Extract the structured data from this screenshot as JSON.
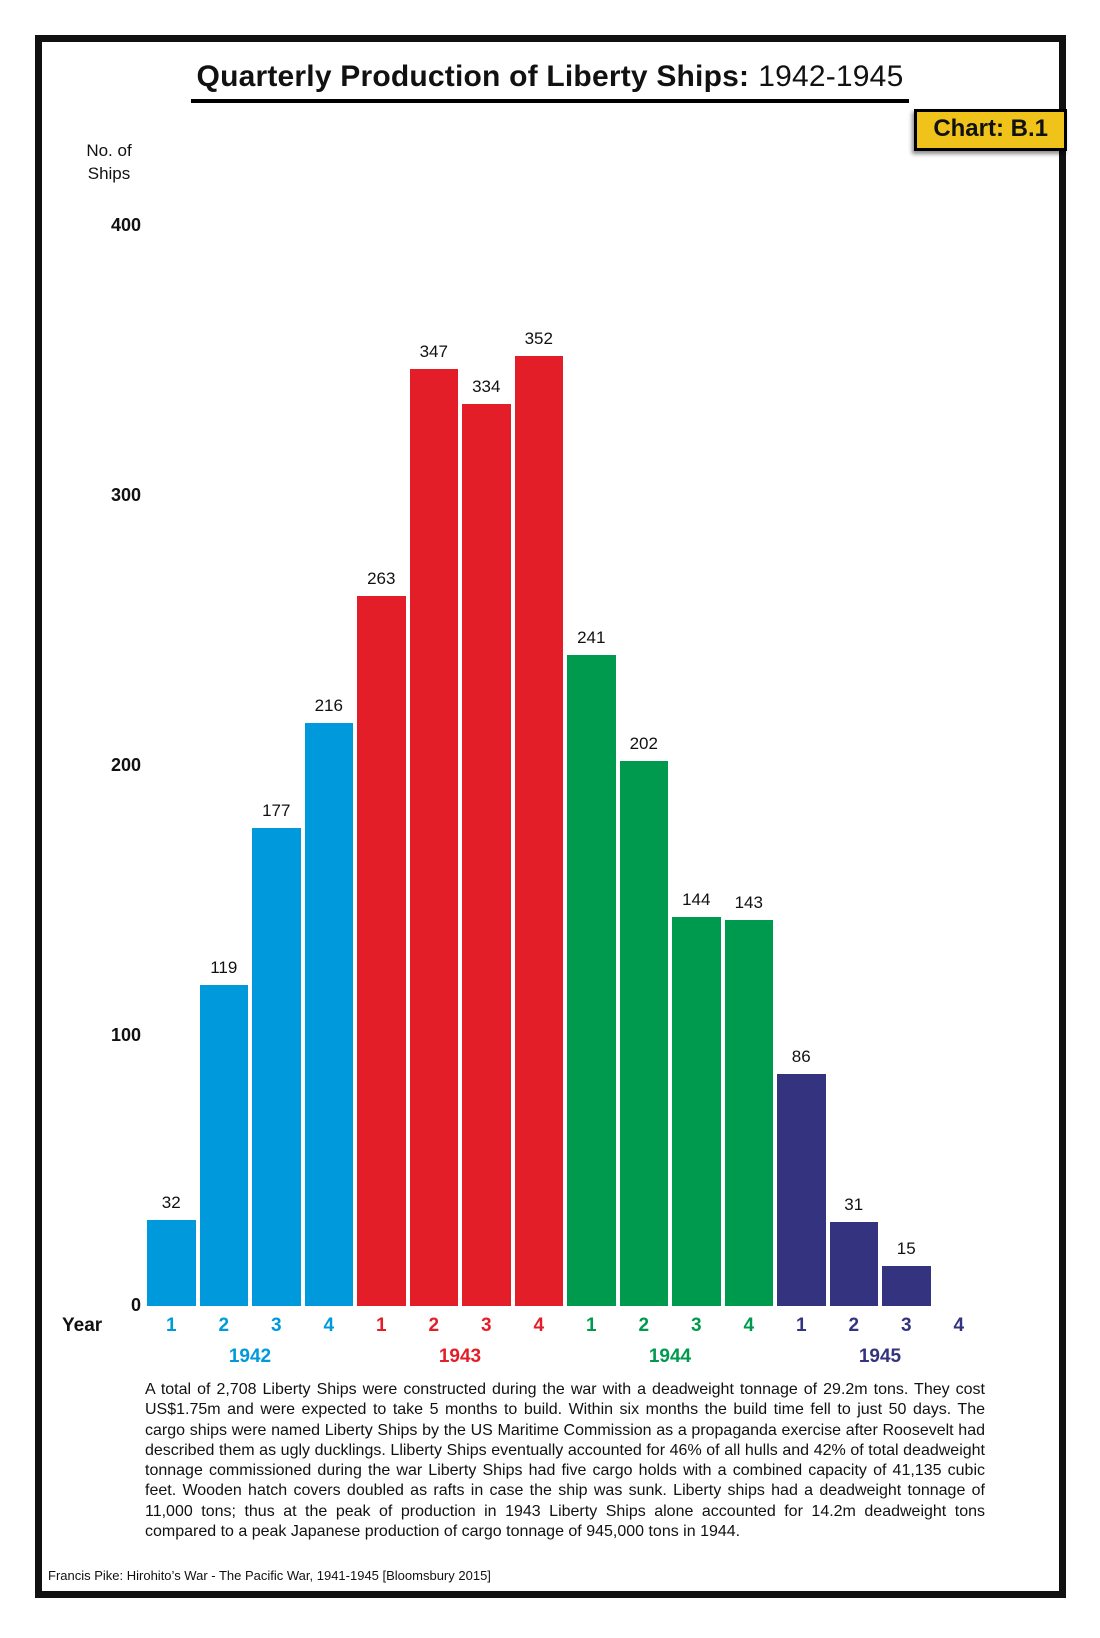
{
  "header": {
    "title_main": "Quarterly Production of Liberty Ships:",
    "title_years": "1942-1945",
    "badge_label": "Chart: B.1"
  },
  "chart_data": {
    "type": "bar",
    "title": "Quarterly Production of Liberty Ships: 1942-1945",
    "xlabel": "Year",
    "ylabel": "No. of Ships",
    "ylabel_lines": [
      "No. of",
      "Ships"
    ],
    "ylim": [
      0,
      400
    ],
    "yticks": [
      0,
      100,
      200,
      300,
      400
    ],
    "grid": false,
    "legend_position": "none",
    "categories": [
      "1942 Q1",
      "1942 Q2",
      "1942 Q3",
      "1942 Q4",
      "1943 Q1",
      "1943 Q2",
      "1943 Q3",
      "1943 Q4",
      "1944 Q1",
      "1944 Q2",
      "1944 Q3",
      "1944 Q4",
      "1945 Q1",
      "1945 Q2",
      "1945 Q3",
      "1945 Q4"
    ],
    "groups": [
      {
        "year": "1942",
        "color": "#0099DB",
        "quarter_labels": [
          "1",
          "2",
          "3",
          "4"
        ],
        "values": [
          32,
          119,
          177,
          216
        ]
      },
      {
        "year": "1943",
        "color": "#E31E29",
        "quarter_labels": [
          "1",
          "2",
          "3",
          "4"
        ],
        "values": [
          263,
          347,
          334,
          352
        ]
      },
      {
        "year": "1944",
        "color": "#009A4E",
        "quarter_labels": [
          "1",
          "2",
          "3",
          "4"
        ],
        "values": [
          241,
          202,
          144,
          143
        ]
      },
      {
        "year": "1945",
        "color": "#333380",
        "quarter_labels": [
          "1",
          "2",
          "3",
          "4"
        ],
        "values": [
          86,
          31,
          15,
          null
        ]
      }
    ]
  },
  "description": {
    "text": "A total of 2,708 Liberty Ships were constructed during the war with a deadweight tonnage of 29.2m tons.  They cost US$1.75m and were expected to take 5 months to build. Within six months the build time fell to just 50 days. The cargo ships were named Liberty Ships by the US Maritime Commission as a propaganda exercise after Roosevelt had described them as ugly ducklings.  Lliberty Ships eventually accounted for 46% of all hulls and 42% of total deadweight tonnage commissioned during the war Liberty Ships had five cargo holds with a combined capacity of 41,135 cubic feet.  Wooden hatch covers doubled as rafts in case the ship was sunk.  Liberty ships had a deadweight tonnage of 11,000 tons; thus at the peak of production in 1943 Liberty Ships alone accounted for 14.2m deadweight tons compared to a peak Japanese production of cargo tonnage of 945,000 tons in 1944."
  },
  "footer": {
    "text": "Francis Pike:  Hirohito’s War - The Pacific War, 1941-1945   [Bloomsbury 2015]"
  },
  "colors": {
    "badge_background": "#EFC31A",
    "frame_border": "#111111",
    "year_1942": "#0099DB",
    "year_1943": "#E31E29",
    "year_1944": "#009A4E",
    "year_1945": "#333380"
  }
}
